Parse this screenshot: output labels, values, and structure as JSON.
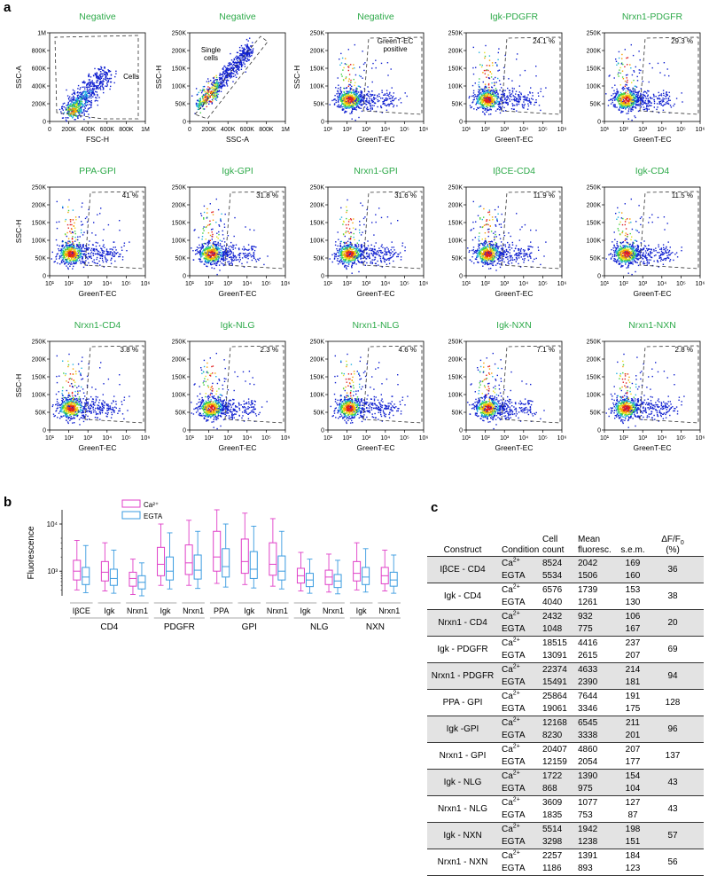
{
  "panel_labels": {
    "a": "a",
    "b": "b",
    "c": "c"
  },
  "colors": {
    "title_green": "#2eaa4a",
    "ca_box": "#e040c8",
    "egta_box": "#3a9be0"
  },
  "flow_panels": [
    {
      "title": "Negative",
      "xlabel": "FSC-H",
      "ylabel": "SSC-A",
      "xticks": [
        "0",
        "200K",
        "400K",
        "600K",
        "800K",
        "1M"
      ],
      "yticks": [
        "0",
        "200K",
        "400K",
        "600K",
        "800K",
        "1M"
      ],
      "gate_label": "Cells",
      "percent": ""
    },
    {
      "title": "Negative",
      "xlabel": "SSC-A",
      "ylabel": "SSC-H",
      "xticks": [
        "0",
        "200K",
        "400K",
        "600K",
        "800K",
        "1M"
      ],
      "yticks": [
        "0",
        "50K",
        "100K",
        "150K",
        "200K",
        "250K"
      ],
      "gate_label": "Single cells",
      "percent": ""
    },
    {
      "title": "Negative",
      "xlabel": "GreenT-EC",
      "ylabel": "SSC-H",
      "xticks": [
        "10¹",
        "10²",
        "10³",
        "10⁴",
        "10⁵",
        "10⁶"
      ],
      "yticks": [
        "0",
        "50K",
        "100K",
        "150K",
        "200K",
        "250K"
      ],
      "gate_label": "GreenT-EC positive",
      "percent": ""
    },
    {
      "title": "Igk-PDGFR",
      "xlabel": "GreenT-EC",
      "ylabel": "",
      "xticks": [
        "10¹",
        "10²",
        "10³",
        "10⁴",
        "10⁵",
        "10⁶"
      ],
      "yticks": [
        "0",
        "50K",
        "100K",
        "150K",
        "200K",
        "250K"
      ],
      "gate_label": "",
      "percent": "24.1 %"
    },
    {
      "title": "Nrxn1-PDGFR",
      "xlabel": "GreenT-EC",
      "ylabel": "",
      "xticks": [
        "10¹",
        "10²",
        "10³",
        "10⁴",
        "10⁵",
        "10⁶"
      ],
      "yticks": [
        "0",
        "50K",
        "100K",
        "150K",
        "200K",
        "250K"
      ],
      "gate_label": "",
      "percent": "29.3 %"
    },
    {
      "title": "PPA-GPI",
      "xlabel": "GreenT-EC",
      "ylabel": "SSC-H",
      "xticks": [
        "10¹",
        "10²",
        "10³",
        "10⁴",
        "10⁵",
        "10⁶"
      ],
      "yticks": [
        "0",
        "50K",
        "100K",
        "150K",
        "200K",
        "250K"
      ],
      "gate_label": "",
      "percent": "41 %"
    },
    {
      "title": "Igk-GPI",
      "xlabel": "GreenT-EC",
      "ylabel": "",
      "xticks": [
        "10¹",
        "10²",
        "10³",
        "10⁴",
        "10⁵",
        "10⁶"
      ],
      "yticks": [
        "0",
        "50K",
        "100K",
        "150K",
        "200K",
        "250K"
      ],
      "gate_label": "",
      "percent": "31.8 %"
    },
    {
      "title": "Nrxn1-GPI",
      "xlabel": "GreenT-EC",
      "ylabel": "",
      "xticks": [
        "10¹",
        "10²",
        "10³",
        "10⁴",
        "10⁵",
        "10⁶"
      ],
      "yticks": [
        "0",
        "50K",
        "100K",
        "150K",
        "200K",
        "250K"
      ],
      "gate_label": "",
      "percent": "31.6 %"
    },
    {
      "title": "IβCE-CD4",
      "xlabel": "GreenT-EC",
      "ylabel": "",
      "xticks": [
        "10¹",
        "10²",
        "10³",
        "10⁴",
        "10⁵",
        "10⁶"
      ],
      "yticks": [
        "0",
        "50K",
        "100K",
        "150K",
        "200K",
        "250K"
      ],
      "gate_label": "",
      "percent": "11.9 %"
    },
    {
      "title": "Igk-CD4",
      "xlabel": "GreenT-EC",
      "ylabel": "",
      "xticks": [
        "10¹",
        "10²",
        "10³",
        "10⁴",
        "10⁵",
        "10⁶"
      ],
      "yticks": [
        "0",
        "50K",
        "100K",
        "150K",
        "200K",
        "250K"
      ],
      "gate_label": "",
      "percent": "11.5 %"
    },
    {
      "title": "Nrxn1-CD4",
      "xlabel": "GreenT-EC",
      "ylabel": "SSC-H",
      "xticks": [
        "10¹",
        "10²",
        "10³",
        "10⁴",
        "10⁵",
        "10⁶"
      ],
      "yticks": [
        "0",
        "50K",
        "100K",
        "150K",
        "200K",
        "250K"
      ],
      "gate_label": "",
      "percent": "3.8 %"
    },
    {
      "title": "Igk-NLG",
      "xlabel": "GreenT-EC",
      "ylabel": "",
      "xticks": [
        "10¹",
        "10²",
        "10³",
        "10⁴",
        "10⁵",
        "10⁶"
      ],
      "yticks": [
        "0",
        "50K",
        "100K",
        "150K",
        "200K",
        "250K"
      ],
      "gate_label": "",
      "percent": "2.3 %"
    },
    {
      "title": "Nrxn1-NLG",
      "xlabel": "GreenT-EC",
      "ylabel": "",
      "xticks": [
        "10¹",
        "10²",
        "10³",
        "10⁴",
        "10⁵",
        "10⁶"
      ],
      "yticks": [
        "0",
        "50K",
        "100K",
        "150K",
        "200K",
        "250K"
      ],
      "gate_label": "",
      "percent": "4.6 %"
    },
    {
      "title": "Igk-NXN",
      "xlabel": "GreenT-EC",
      "ylabel": "",
      "xticks": [
        "10¹",
        "10²",
        "10³",
        "10⁴",
        "10⁵",
        "10⁶"
      ],
      "yticks": [
        "0",
        "50K",
        "100K",
        "150K",
        "200K",
        "250K"
      ],
      "gate_label": "",
      "percent": "7.1 %"
    },
    {
      "title": "Nrxn1-NXN",
      "xlabel": "GreenT-EC",
      "ylabel": "",
      "xticks": [
        "10¹",
        "10²",
        "10³",
        "10⁴",
        "10⁵",
        "10⁶"
      ],
      "yticks": [
        "0",
        "50K",
        "100K",
        "150K",
        "200K",
        "250K"
      ],
      "gate_label": "",
      "percent": "2.8 %"
    }
  ],
  "chart_data": {
    "type": "box",
    "ylabel": "Fluorescence",
    "yscale": "log",
    "yticks": [
      "10³",
      "10⁴"
    ],
    "legend": [
      "Ca²⁺",
      "EGTA"
    ],
    "legend_position": "top-left",
    "groups": [
      "CD4",
      "PDGFR",
      "GPI",
      "NLG",
      "NXN"
    ],
    "categories": [
      {
        "label": "IβCE",
        "group": "CD4"
      },
      {
        "label": "Igk",
        "group": "CD4"
      },
      {
        "label": "Nrxn1",
        "group": "CD4"
      },
      {
        "label": "Igk",
        "group": "PDGFR"
      },
      {
        "label": "Nrxn1",
        "group": "PDGFR"
      },
      {
        "label": "PPA",
        "group": "GPI"
      },
      {
        "label": "Igk",
        "group": "GPI"
      },
      {
        "label": "Nrxn1",
        "group": "GPI"
      },
      {
        "label": "Igk",
        "group": "NLG"
      },
      {
        "label": "Nrxn1",
        "group": "NLG"
      },
      {
        "label": "Igk",
        "group": "NXN"
      },
      {
        "label": "Nrxn1",
        "group": "NXN"
      }
    ],
    "series": [
      {
        "name": "Ca²⁺",
        "boxes": [
          [
            400,
            650,
            1000,
            1700,
            4500
          ],
          [
            380,
            620,
            950,
            1600,
            4000
          ],
          [
            320,
            480,
            700,
            950,
            1800
          ],
          [
            500,
            800,
            1400,
            3200,
            10000
          ],
          [
            500,
            850,
            1500,
            3600,
            12000
          ],
          [
            550,
            1000,
            2000,
            7000,
            20000
          ],
          [
            520,
            900,
            1600,
            4800,
            17000
          ],
          [
            480,
            820,
            1400,
            4000,
            13000
          ],
          [
            380,
            560,
            800,
            1150,
            2500
          ],
          [
            360,
            520,
            750,
            1050,
            2300
          ],
          [
            400,
            620,
            900,
            1600,
            4000
          ],
          [
            380,
            540,
            800,
            1200,
            2800
          ]
        ]
      },
      {
        "name": "EGTA",
        "boxes": [
          [
            350,
            520,
            750,
            1200,
            3500
          ],
          [
            340,
            500,
            700,
            1100,
            2800
          ],
          [
            300,
            420,
            580,
            800,
            1500
          ],
          [
            420,
            650,
            1000,
            2000,
            6500
          ],
          [
            430,
            680,
            1050,
            2200,
            7000
          ],
          [
            460,
            750,
            1250,
            3000,
            10000
          ],
          [
            440,
            700,
            1100,
            2600,
            9000
          ],
          [
            420,
            650,
            1000,
            2100,
            7000
          ],
          [
            340,
            470,
            650,
            900,
            1800
          ],
          [
            330,
            450,
            620,
            850,
            1700
          ],
          [
            360,
            520,
            750,
            1200,
            3000
          ],
          [
            340,
            480,
            650,
            950,
            2200
          ]
        ]
      }
    ]
  },
  "table": {
    "headers": {
      "construct": "Construct",
      "condition": "Condition",
      "cell_count_1": "Cell",
      "cell_count_2": "count",
      "mean_1": "Mean",
      "mean_2": "fluoresc.",
      "sem": "s.e.m.",
      "df_1": "ΔF/F",
      "df_sub": "0",
      "df_2": "(%)"
    },
    "ca_label": "Ca",
    "ca_sup": "2+",
    "egta_label": "EGTA",
    "rows": [
      {
        "construct": "IβCE - CD4",
        "ca_count": "8524",
        "egta_count": "5534",
        "ca_mean": "2042",
        "egta_mean": "1506",
        "ca_sem": "169",
        "egta_sem": "160",
        "df": "36"
      },
      {
        "construct": "Igk - CD4",
        "ca_count": "6576",
        "egta_count": "4040",
        "ca_mean": "1739",
        "egta_mean": "1261",
        "ca_sem": "153",
        "egta_sem": "130",
        "df": "38"
      },
      {
        "construct": "Nrxn1 - CD4",
        "ca_count": "2432",
        "egta_count": "1048",
        "ca_mean": "932",
        "egta_mean": "775",
        "ca_sem": "106",
        "egta_sem": "167",
        "df": "20"
      },
      {
        "construct": "Igk - PDGFR",
        "ca_count": "18515",
        "egta_count": "13091",
        "ca_mean": "4416",
        "egta_mean": "2615",
        "ca_sem": "237",
        "egta_sem": "207",
        "df": "69"
      },
      {
        "construct": "Nrxn1 - PDGFR",
        "ca_count": "22374",
        "egta_count": "15491",
        "ca_mean": "4633",
        "egta_mean": "2390",
        "ca_sem": "214",
        "egta_sem": "181",
        "df": "94"
      },
      {
        "construct": "PPA - GPI",
        "ca_count": "25864",
        "egta_count": "19061",
        "ca_mean": "7644",
        "egta_mean": "3346",
        "ca_sem": "191",
        "egta_sem": "175",
        "df": "128"
      },
      {
        "construct": "Igk -GPI",
        "ca_count": "12168",
        "egta_count": "8230",
        "ca_mean": "6545",
        "egta_mean": "3338",
        "ca_sem": "211",
        "egta_sem": "201",
        "df": "96"
      },
      {
        "construct": "Nrxn1 - GPI",
        "ca_count": "20407",
        "egta_count": "12159",
        "ca_mean": "4860",
        "egta_mean": "2054",
        "ca_sem": "207",
        "egta_sem": "177",
        "df": "137"
      },
      {
        "construct": "Igk - NLG",
        "ca_count": "1722",
        "egta_count": "868",
        "ca_mean": "1390",
        "egta_mean": "975",
        "ca_sem": "154",
        "egta_sem": "104",
        "df": "43"
      },
      {
        "construct": "Nrxn1 - NLG",
        "ca_count": "3609",
        "egta_count": "1835",
        "ca_mean": "1077",
        "egta_mean": "753",
        "ca_sem": "127",
        "egta_sem": "87",
        "df": "43"
      },
      {
        "construct": "Igk - NXN",
        "ca_count": "5514",
        "egta_count": "3298",
        "ca_mean": "1942",
        "egta_mean": "1238",
        "ca_sem": "198",
        "egta_sem": "151",
        "df": "57"
      },
      {
        "construct": "Nrxn1 - NXN",
        "ca_count": "2257",
        "egta_count": "1186",
        "ca_mean": "1391",
        "egta_mean": "893",
        "ca_sem": "184",
        "egta_sem": "123",
        "df": "56"
      }
    ]
  }
}
